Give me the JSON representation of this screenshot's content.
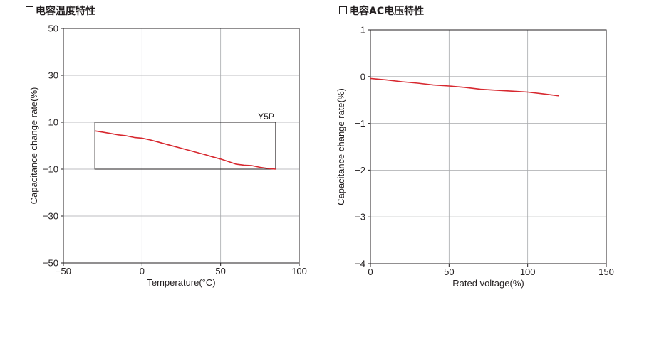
{
  "chart_data": [
    {
      "type": "line",
      "title": "电容温度特性",
      "xlabel": "Temperature(°C)",
      "ylabel": "Capacitance change rate(%)",
      "xlim": [
        -50,
        100
      ],
      "ylim": [
        -50,
        50
      ],
      "x_ticks": [
        -50,
        0,
        50,
        100
      ],
      "x_tick_labels": [
        "−50",
        "0",
        "50",
        "100"
      ],
      "y_ticks": [
        -50,
        -30,
        -10,
        10,
        30,
        50
      ],
      "y_tick_labels": [
        "−50",
        "−30",
        "−10",
        "10",
        "30",
        "50"
      ],
      "grid": true,
      "spec_box": {
        "label": "Y5P",
        "x": [
          -30,
          85
        ],
        "y": [
          -10,
          10
        ]
      },
      "series": [
        {
          "color": "#d7282f",
          "x": [
            -30,
            -25,
            -20,
            -15,
            -10,
            -5,
            0,
            5,
            10,
            15,
            20,
            25,
            30,
            35,
            40,
            45,
            50,
            55,
            60,
            65,
            70,
            75,
            80,
            85
          ],
          "y": [
            6.3,
            5.8,
            5.2,
            4.6,
            4.2,
            3.5,
            3.2,
            2.5,
            1.6,
            0.7,
            -0.2,
            -1.1,
            -2.0,
            -2.9,
            -3.8,
            -4.8,
            -5.7,
            -6.8,
            -7.9,
            -8.3,
            -8.5,
            -9.2,
            -9.7,
            -10.0
          ]
        }
      ]
    },
    {
      "type": "line",
      "title": "电容AC电压特性",
      "xlabel": "Rated voltage(%)",
      "ylabel": "Capacitance change rate(%)",
      "xlim": [
        0,
        150
      ],
      "ylim": [
        -4,
        1
      ],
      "x_ticks": [
        0,
        50,
        100,
        150
      ],
      "x_tick_labels": [
        "0",
        "50",
        "100",
        "150"
      ],
      "y_ticks": [
        -4,
        -3,
        -2,
        -1,
        0,
        1
      ],
      "y_tick_labels": [
        "−4",
        "−3",
        "−2",
        "−1",
        "0",
        "1"
      ],
      "grid": true,
      "series": [
        {
          "color": "#d7282f",
          "x": [
            0,
            10,
            20,
            30,
            40,
            50,
            60,
            70,
            80,
            90,
            100,
            110,
            120
          ],
          "y": [
            -0.04,
            -0.07,
            -0.11,
            -0.14,
            -0.18,
            -0.2,
            -0.23,
            -0.27,
            -0.29,
            -0.31,
            -0.33,
            -0.37,
            -0.41
          ]
        }
      ]
    }
  ]
}
